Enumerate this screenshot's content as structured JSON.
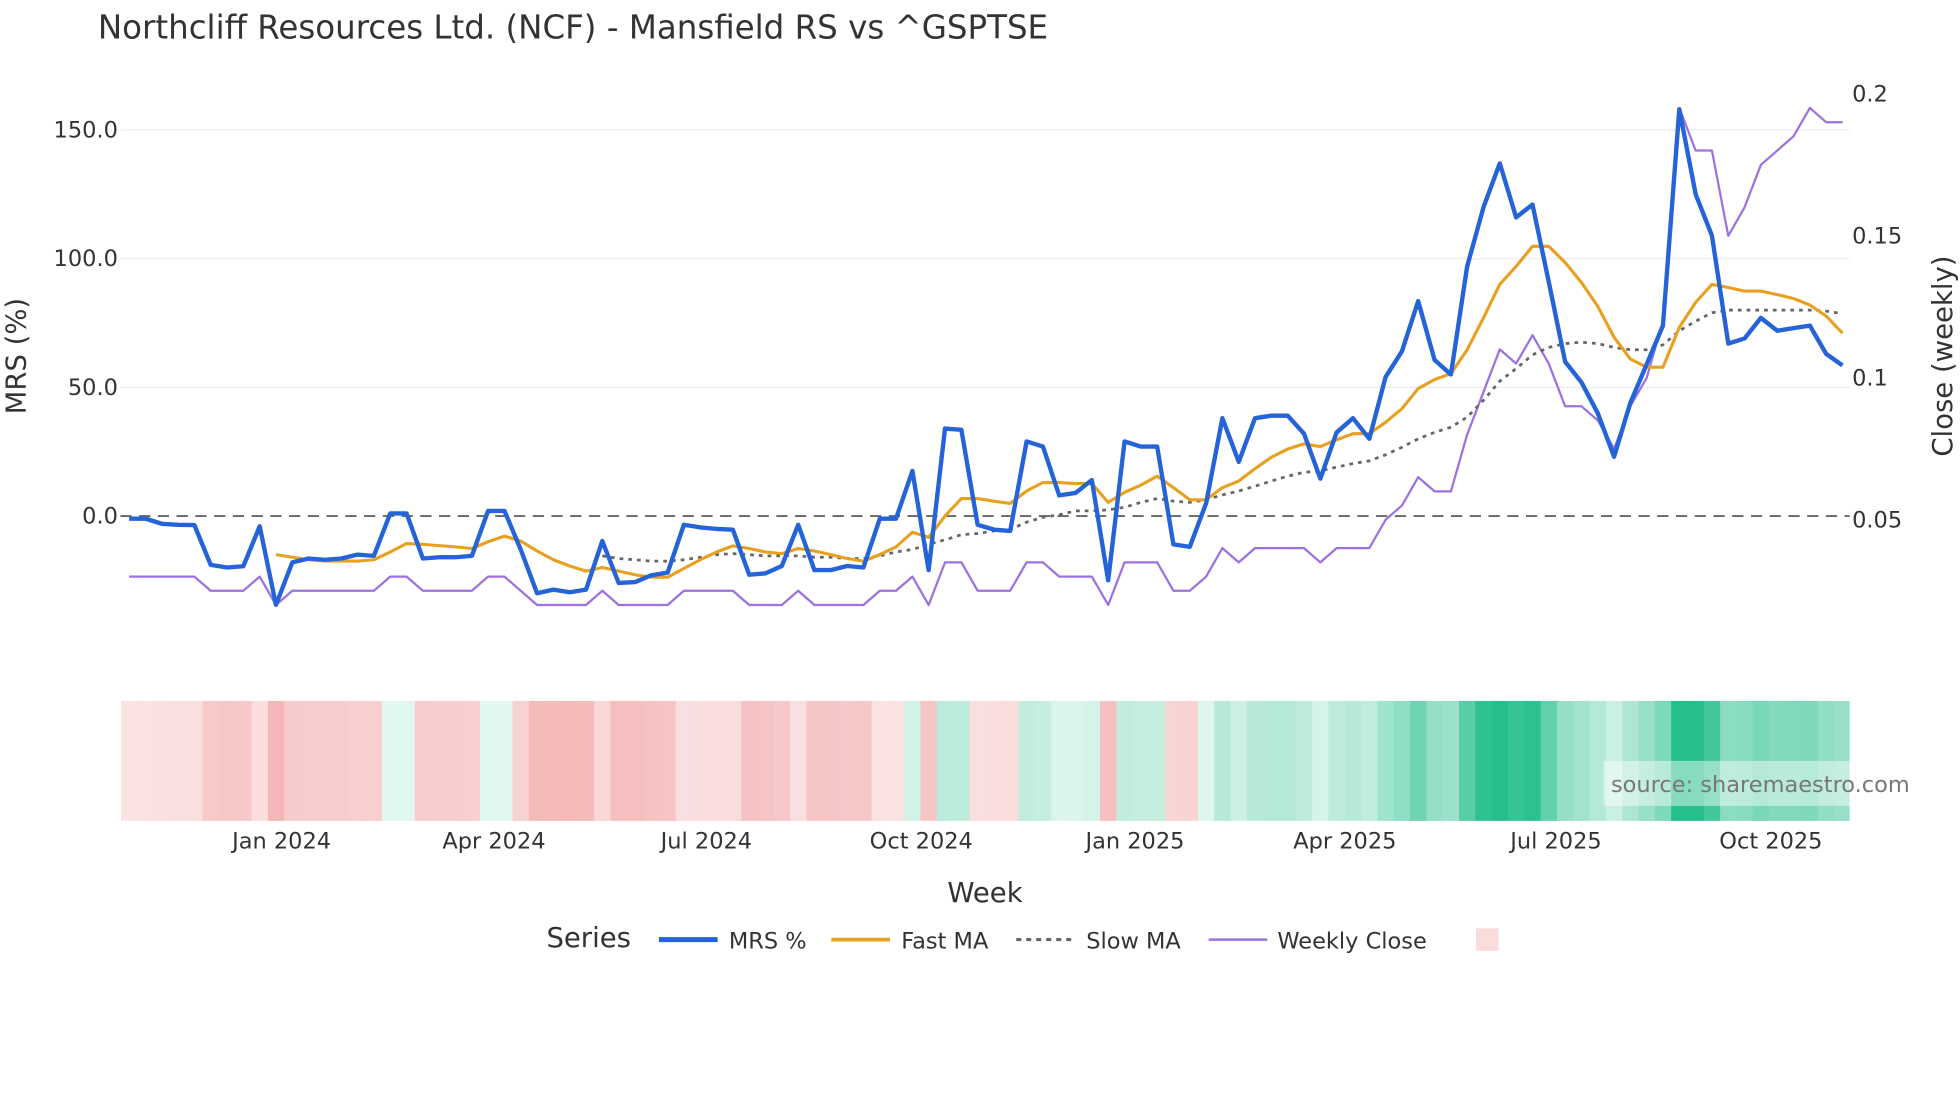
{
  "chart_data": {
    "type": "line",
    "title": "Northcliff Resources Ltd. (NCF) - Mansfield RS vs ^GSPTSE",
    "xlabel": "Week",
    "ylabel_left": "MRS (%)",
    "ylabel_right": "Close (weekly)",
    "x_start_week": "2023-10-30",
    "x_interval": "weekly",
    "x_ticks": [
      "Jan 2024",
      "Apr 2024",
      "Jul 2024",
      "Oct 2024",
      "Jan 2025",
      "Apr 2025",
      "Jul 2025",
      "Oct 2025"
    ],
    "y_left_ticks": [
      "0.0",
      "50.0",
      "100.0",
      "150.0"
    ],
    "y_right_ticks": [
      "0.05",
      "0.1",
      "0.15",
      "0.2"
    ],
    "y_left_range": [
      -40,
      165
    ],
    "y_right_range": [
      0.02,
      0.2
    ],
    "zero_line": 0,
    "legend_title": "Series",
    "legend_position": "bottom",
    "watermark": "source: sharemaestro.com",
    "series": [
      {
        "name": "MRS %",
        "axis": "left",
        "color": "#2563d9",
        "values": [
          -1,
          -1,
          -3,
          -3.4,
          -3.5,
          -19,
          -20,
          -19.5,
          -4,
          -34.5,
          -18,
          -16.5,
          -17,
          -16.5,
          -15,
          -15.5,
          1,
          1,
          -16.5,
          -16,
          -16,
          -15.5,
          2,
          2,
          -13,
          -30,
          -28.6,
          -29.6,
          -28.6,
          -9.7,
          -26,
          -25.7,
          -23,
          -22,
          -3.4,
          -4.4,
          -5,
          -5.3,
          -22.8,
          -22.3,
          -19.4,
          -3.4,
          -21,
          -21,
          -19.4,
          -20,
          -1,
          -1,
          17.5,
          -21,
          34,
          33.5,
          -3.4,
          -5.3,
          -5.8,
          29,
          27,
          8,
          9,
          14,
          -25,
          29,
          27,
          27,
          -11,
          -12,
          5,
          38,
          21,
          38,
          39,
          39,
          32,
          14.5,
          32.5,
          38,
          30,
          54,
          64,
          83.5,
          60.7,
          55,
          97,
          120,
          137,
          116,
          121,
          91,
          60,
          52,
          40,
          23,
          44,
          59,
          74,
          158,
          125,
          109,
          67,
          69,
          77,
          72,
          73,
          74,
          63,
          58.5
        ]
      },
      {
        "name": "Fast MA",
        "axis": "left",
        "color": "#e8a020",
        "values": [
          null,
          null,
          null,
          null,
          null,
          null,
          null,
          null,
          null,
          -15,
          -16,
          -17,
          -17.5,
          -17.5,
          -17.5,
          -17,
          -14,
          -10.7,
          -11,
          -11.5,
          -12,
          -12.6,
          -10,
          -7.8,
          -9.7,
          -13.6,
          -17,
          -19.4,
          -21.4,
          -20,
          -21.4,
          -22.8,
          -23.8,
          -23.8,
          -20.4,
          -17,
          -14,
          -11.6,
          -12.6,
          -14,
          -14.6,
          -12.6,
          -13.6,
          -15,
          -16.5,
          -17.5,
          -15,
          -12,
          -6.3,
          -8.3,
          0,
          6.8,
          6.8,
          5.8,
          4.9,
          9.7,
          13,
          13,
          12.6,
          12.6,
          5.3,
          9.2,
          12,
          15.5,
          11,
          6.3,
          6.3,
          11,
          13.6,
          18.4,
          22.8,
          26,
          28,
          27,
          29.6,
          32,
          32,
          36.4,
          41.7,
          49.5,
          53,
          55.3,
          64.6,
          77,
          90,
          97,
          104.8,
          104.8,
          98.5,
          90.8,
          81.5,
          69.4,
          61,
          57.8,
          57.8,
          73.3,
          83,
          90,
          88.8,
          87.4,
          87.4,
          86,
          84.5,
          82,
          77.7,
          71
        ]
      },
      {
        "name": "Slow MA",
        "axis": "left",
        "color": "#666666",
        "dash": true,
        "values": [
          null,
          null,
          null,
          null,
          null,
          null,
          null,
          null,
          null,
          null,
          null,
          null,
          null,
          null,
          null,
          null,
          null,
          null,
          null,
          null,
          null,
          null,
          null,
          null,
          null,
          null,
          null,
          null,
          null,
          -15.5,
          -16.5,
          -17,
          -17.5,
          -17.5,
          -17,
          -16,
          -15,
          -14.6,
          -15,
          -15.5,
          -15.5,
          -15.5,
          -16,
          -16,
          -16.5,
          -16.5,
          -15.5,
          -14,
          -13,
          -11,
          -9.2,
          -7.3,
          -6.8,
          -5.8,
          -5.3,
          -2.4,
          -0.5,
          0.5,
          2,
          2,
          2.4,
          3.4,
          5.3,
          6.8,
          5.8,
          5.3,
          6.3,
          8.2,
          9.7,
          11.6,
          13.6,
          15.5,
          17,
          17.5,
          19,
          20.4,
          21.4,
          23.8,
          26.7,
          30,
          32.5,
          34.5,
          38.4,
          45,
          52.4,
          57.3,
          62.6,
          65.5,
          67,
          67.5,
          67,
          65.5,
          64.6,
          64.6,
          66.5,
          72,
          75.7,
          79,
          80,
          80,
          80,
          80,
          80,
          80,
          79.6,
          78.6
        ]
      },
      {
        "name": "Weekly Close",
        "axis": "right",
        "color": "#9b72e0",
        "values": [
          0.03,
          0.03,
          0.03,
          0.03,
          0.03,
          0.025,
          0.025,
          0.025,
          0.03,
          0.02,
          0.025,
          0.025,
          0.025,
          0.025,
          0.025,
          0.025,
          0.03,
          0.03,
          0.025,
          0.025,
          0.025,
          0.025,
          0.03,
          0.03,
          0.025,
          0.02,
          0.02,
          0.02,
          0.02,
          0.025,
          0.02,
          0.02,
          0.02,
          0.02,
          0.025,
          0.025,
          0.025,
          0.025,
          0.02,
          0.02,
          0.02,
          0.025,
          0.02,
          0.02,
          0.02,
          0.02,
          0.025,
          0.025,
          0.03,
          0.02,
          0.035,
          0.035,
          0.025,
          0.025,
          0.025,
          0.035,
          0.035,
          0.03,
          0.03,
          0.03,
          0.02,
          0.035,
          0.035,
          0.035,
          0.025,
          0.025,
          0.03,
          0.04,
          0.035,
          0.04,
          0.04,
          0.04,
          0.04,
          0.035,
          0.04,
          0.04,
          0.04,
          0.05,
          0.055,
          0.065,
          0.06,
          0.06,
          0.08,
          0.095,
          0.11,
          0.105,
          0.115,
          0.105,
          0.09,
          0.09,
          0.085,
          0.075,
          0.09,
          0.1,
          0.12,
          0.195,
          0.18,
          0.18,
          0.15,
          0.16,
          0.175,
          0.18,
          0.185,
          0.195,
          0.19,
          0.19
        ]
      }
    ],
    "heatmap": {
      "source_series": "MRS %",
      "negative_color": "#f4b6b6",
      "positive_color": "#26bf8a"
    }
  }
}
